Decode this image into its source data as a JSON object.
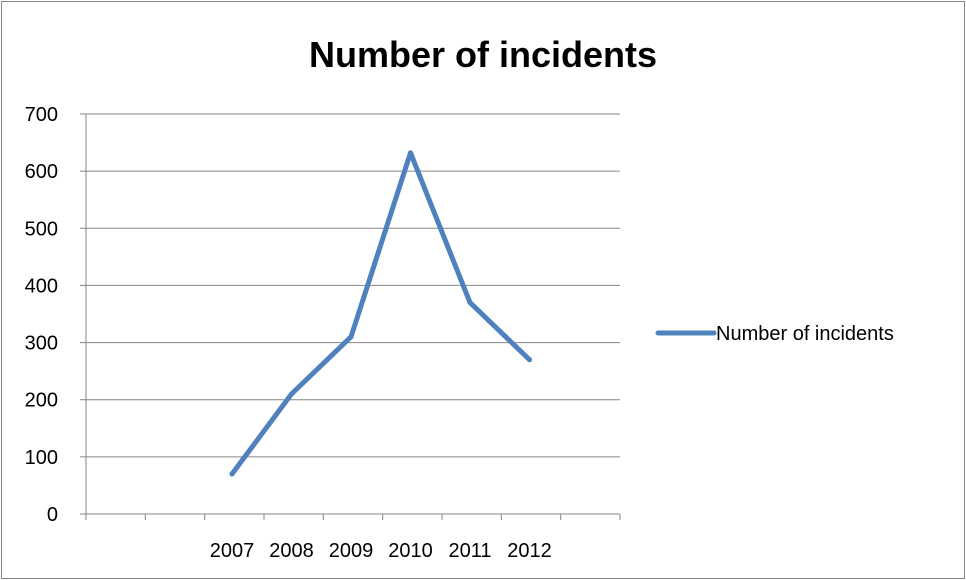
{
  "chart_data": {
    "type": "line",
    "title": "Number of incidents",
    "categories": [
      "2007",
      "2008",
      "2009",
      "2010",
      "2011",
      "2012"
    ],
    "series": [
      {
        "name": "Number of incidents",
        "values": [
          70,
          210,
          310,
          632,
          370,
          270
        ],
        "color": "#4F81BD"
      }
    ],
    "ylim": [
      0,
      700
    ],
    "yticks": [
      "0",
      "100",
      "200",
      "300",
      "400",
      "500",
      "600",
      "700"
    ],
    "grid": true,
    "legend": "right"
  }
}
